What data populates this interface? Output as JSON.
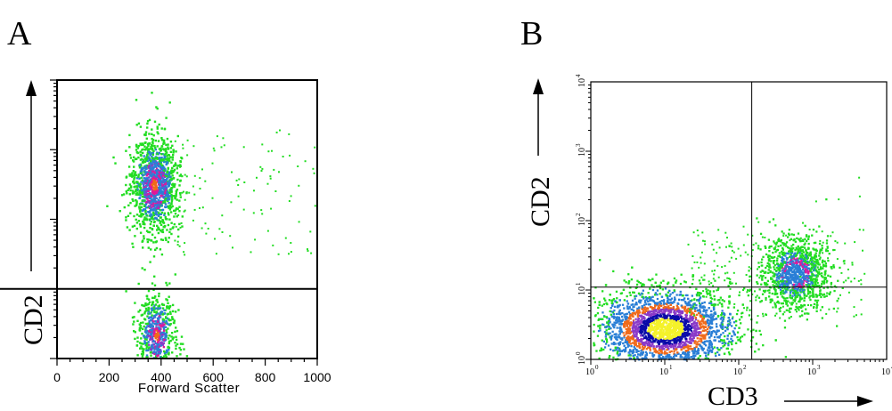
{
  "figure": {
    "panel_a_letter": "A",
    "panel_b_letter": "B"
  },
  "colors": {
    "green": "#22dd22",
    "blue": "#2a7fd6",
    "magenta": "#e0189a",
    "orange": "#f06a1a",
    "darkblue": "#0a0aa8",
    "purple": "#8a3ac8",
    "yellow": "#f4f22a"
  },
  "chart_data": [
    {
      "type": "scatter",
      "panel": "A",
      "xlabel": "Forward Scatter",
      "ylabel": "CD2",
      "xlim": [
        0,
        1000
      ],
      "x_ticks": [
        "0",
        "200",
        "400",
        "600",
        "800",
        "1000"
      ],
      "y_scale": "log",
      "y_decades": 4,
      "gate_y_decade": 1,
      "grid": false,
      "legend": "none",
      "populations": [
        {
          "x_center": 370,
          "x_spread": 45,
          "y_decade_center": 2.5,
          "y_decade_spread": 0.35,
          "density": "high"
        },
        {
          "x_center": 380,
          "x_spread": 35,
          "y_decade_center": 0.35,
          "y_decade_spread": 0.3,
          "density": "medium"
        }
      ],
      "sparse_tail": {
        "x_range": [
          450,
          1000
        ],
        "y_decade_range": [
          1.5,
          3.3
        ]
      }
    },
    {
      "type": "scatter",
      "panel": "B",
      "xlabel": "CD3",
      "ylabel": "CD2",
      "x_scale": "log",
      "y_scale": "log",
      "xlim_exponent": [
        0,
        4
      ],
      "ylim_exponent": [
        0,
        4
      ],
      "tick_exponents": [
        "0",
        "1",
        "2",
        "3",
        "4"
      ],
      "tick_base": "10",
      "quadrant_x": 150,
      "quadrant_y": 11,
      "grid": false,
      "legend": "none",
      "populations": [
        {
          "x_log_center": 1.0,
          "x_log_spread": 0.45,
          "y_log_center": 0.45,
          "y_log_spread": 0.28,
          "density": "very high"
        },
        {
          "x_log_center": 2.75,
          "x_log_spread": 0.22,
          "y_log_center": 1.25,
          "y_log_spread": 0.25,
          "density": "medium"
        }
      ]
    }
  ]
}
